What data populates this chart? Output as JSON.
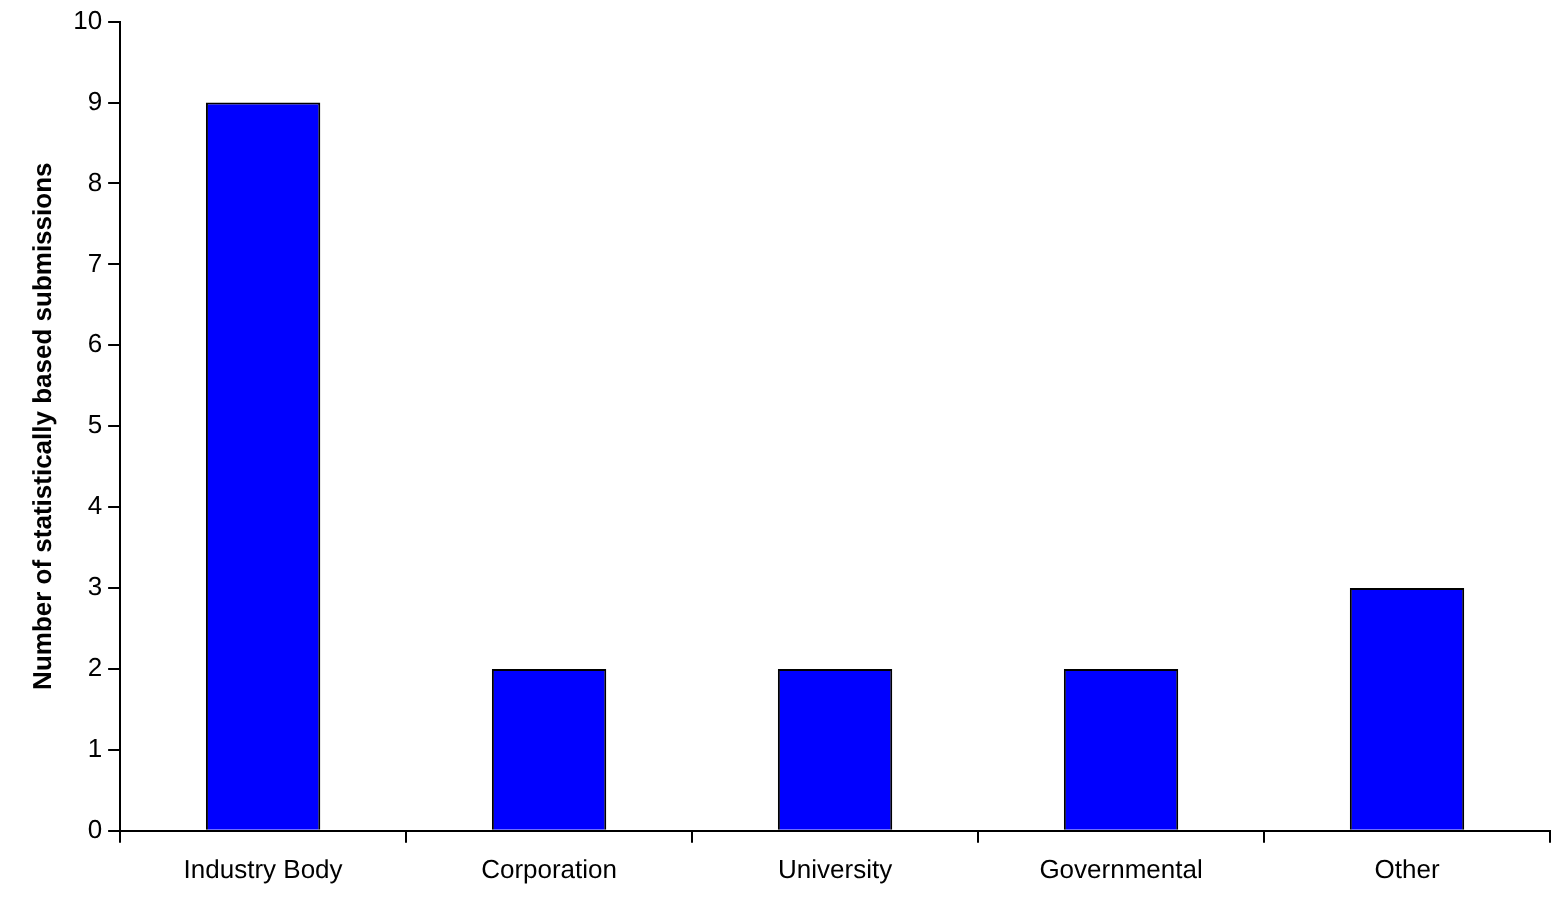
{
  "chart_data": {
    "type": "bar",
    "ylabel": "Number of statistically based submissions",
    "categories": [
      "Industry Body",
      "Corporation",
      "University",
      "Governmental",
      "Other"
    ],
    "values": [
      9,
      2,
      2,
      2,
      3
    ],
    "color": "#0000ff",
    "ylim": [
      0,
      10
    ],
    "yticks": [
      0,
      1,
      2,
      3,
      4,
      5,
      6,
      7,
      8,
      9,
      10
    ],
    "grid": false,
    "legend": false
  }
}
